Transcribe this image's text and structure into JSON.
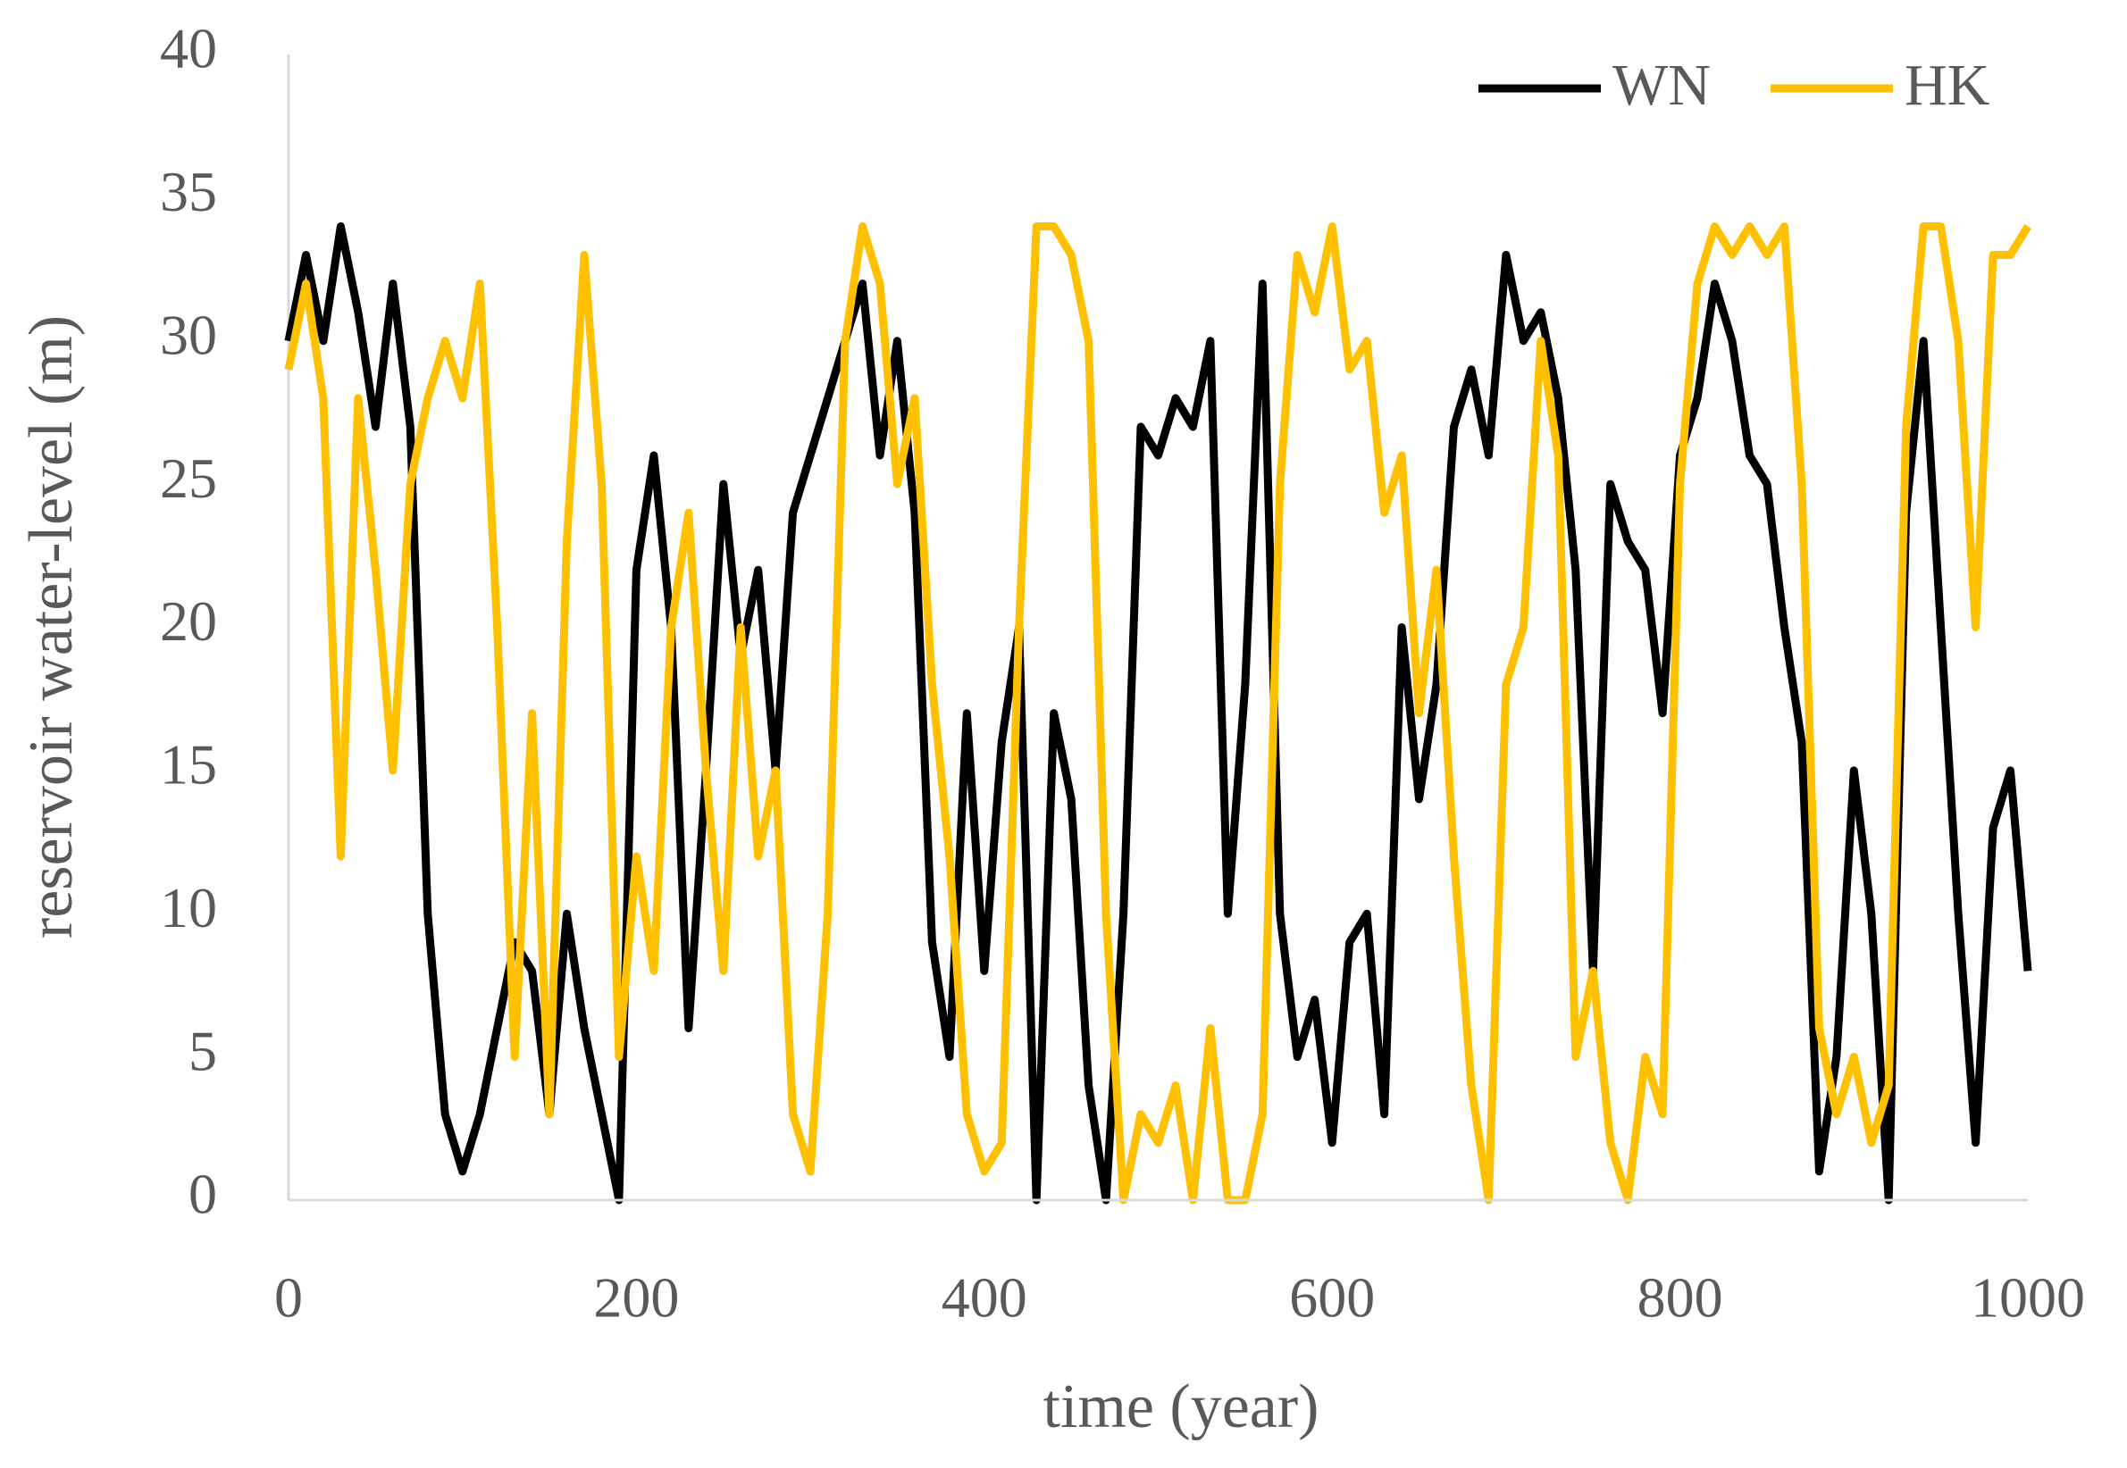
{
  "chart_data": {
    "type": "line",
    "x_label": "time (year)",
    "y_label": "reservoir water-level (m)",
    "x": [
      0,
      10,
      20,
      30,
      40,
      50,
      60,
      70,
      80,
      90,
      100,
      110,
      120,
      130,
      140,
      150,
      160,
      170,
      180,
      190,
      200,
      210,
      220,
      230,
      240,
      250,
      260,
      270,
      280,
      290,
      300,
      310,
      320,
      330,
      340,
      350,
      360,
      370,
      380,
      390,
      400,
      410,
      420,
      430,
      440,
      450,
      460,
      470,
      480,
      490,
      500,
      510,
      520,
      530,
      540,
      550,
      560,
      570,
      580,
      590,
      600,
      610,
      620,
      630,
      640,
      650,
      660,
      670,
      680,
      690,
      700,
      710,
      720,
      730,
      740,
      750,
      760,
      770,
      780,
      790,
      800,
      810,
      820,
      830,
      840,
      850,
      860,
      870,
      880,
      890,
      900,
      910,
      920,
      930,
      940,
      950,
      960,
      970,
      980,
      990,
      1000
    ],
    "series": [
      {
        "name": "WN",
        "color": "#000000",
        "values": [
          30,
          33,
          30,
          34,
          31,
          27,
          32,
          27,
          10,
          3,
          1,
          3,
          6,
          9,
          8,
          3,
          10,
          6,
          3,
          0,
          22,
          26,
          20,
          6,
          15,
          25,
          19,
          22,
          15,
          24,
          26,
          28,
          30,
          32,
          26,
          30,
          24,
          9,
          5,
          17,
          8,
          16,
          20,
          0,
          17,
          14,
          4,
          0,
          10,
          27,
          26,
          28,
          27,
          30,
          10,
          18,
          32,
          10,
          5,
          7,
          2,
          9,
          10,
          3,
          20,
          14,
          18,
          27,
          29,
          26,
          33,
          30,
          31,
          28,
          22,
          8,
          25,
          23,
          22,
          17,
          26,
          28,
          32,
          30,
          26,
          25,
          20,
          16,
          1,
          5,
          15,
          10,
          0,
          24,
          30,
          20,
          10,
          2,
          13,
          15,
          8
        ]
      },
      {
        "name": "HK",
        "color": "#ffc000",
        "values": [
          29,
          32,
          28,
          12,
          28,
          22,
          15,
          25,
          28,
          30,
          28,
          32,
          20,
          5,
          17,
          3,
          23,
          33,
          25,
          5,
          12,
          8,
          20,
          24,
          15,
          8,
          20,
          12,
          15,
          3,
          1,
          10,
          30,
          34,
          32,
          25,
          28,
          18,
          12,
          3,
          1,
          2,
          20,
          34,
          34,
          33,
          30,
          10,
          0,
          3,
          2,
          4,
          0,
          6,
          0,
          0,
          3,
          25,
          33,
          31,
          34,
          29,
          30,
          24,
          26,
          17,
          22,
          12,
          4,
          0,
          18,
          20,
          30,
          26,
          5,
          8,
          2,
          0,
          5,
          3,
          25,
          32,
          34,
          33,
          34,
          33,
          34,
          25,
          6,
          3,
          5,
          2,
          4,
          27,
          34,
          34,
          30,
          20,
          33,
          33,
          34
        ]
      }
    ],
    "xlim": [
      0,
      1000
    ],
    "xticks": [
      0,
      200,
      400,
      600,
      800,
      1000
    ],
    "ylim": [
      0,
      40
    ],
    "yticks": [
      0,
      5,
      10,
      15,
      20,
      25,
      30,
      35,
      40
    ],
    "grid": false,
    "legend": "top-right"
  }
}
